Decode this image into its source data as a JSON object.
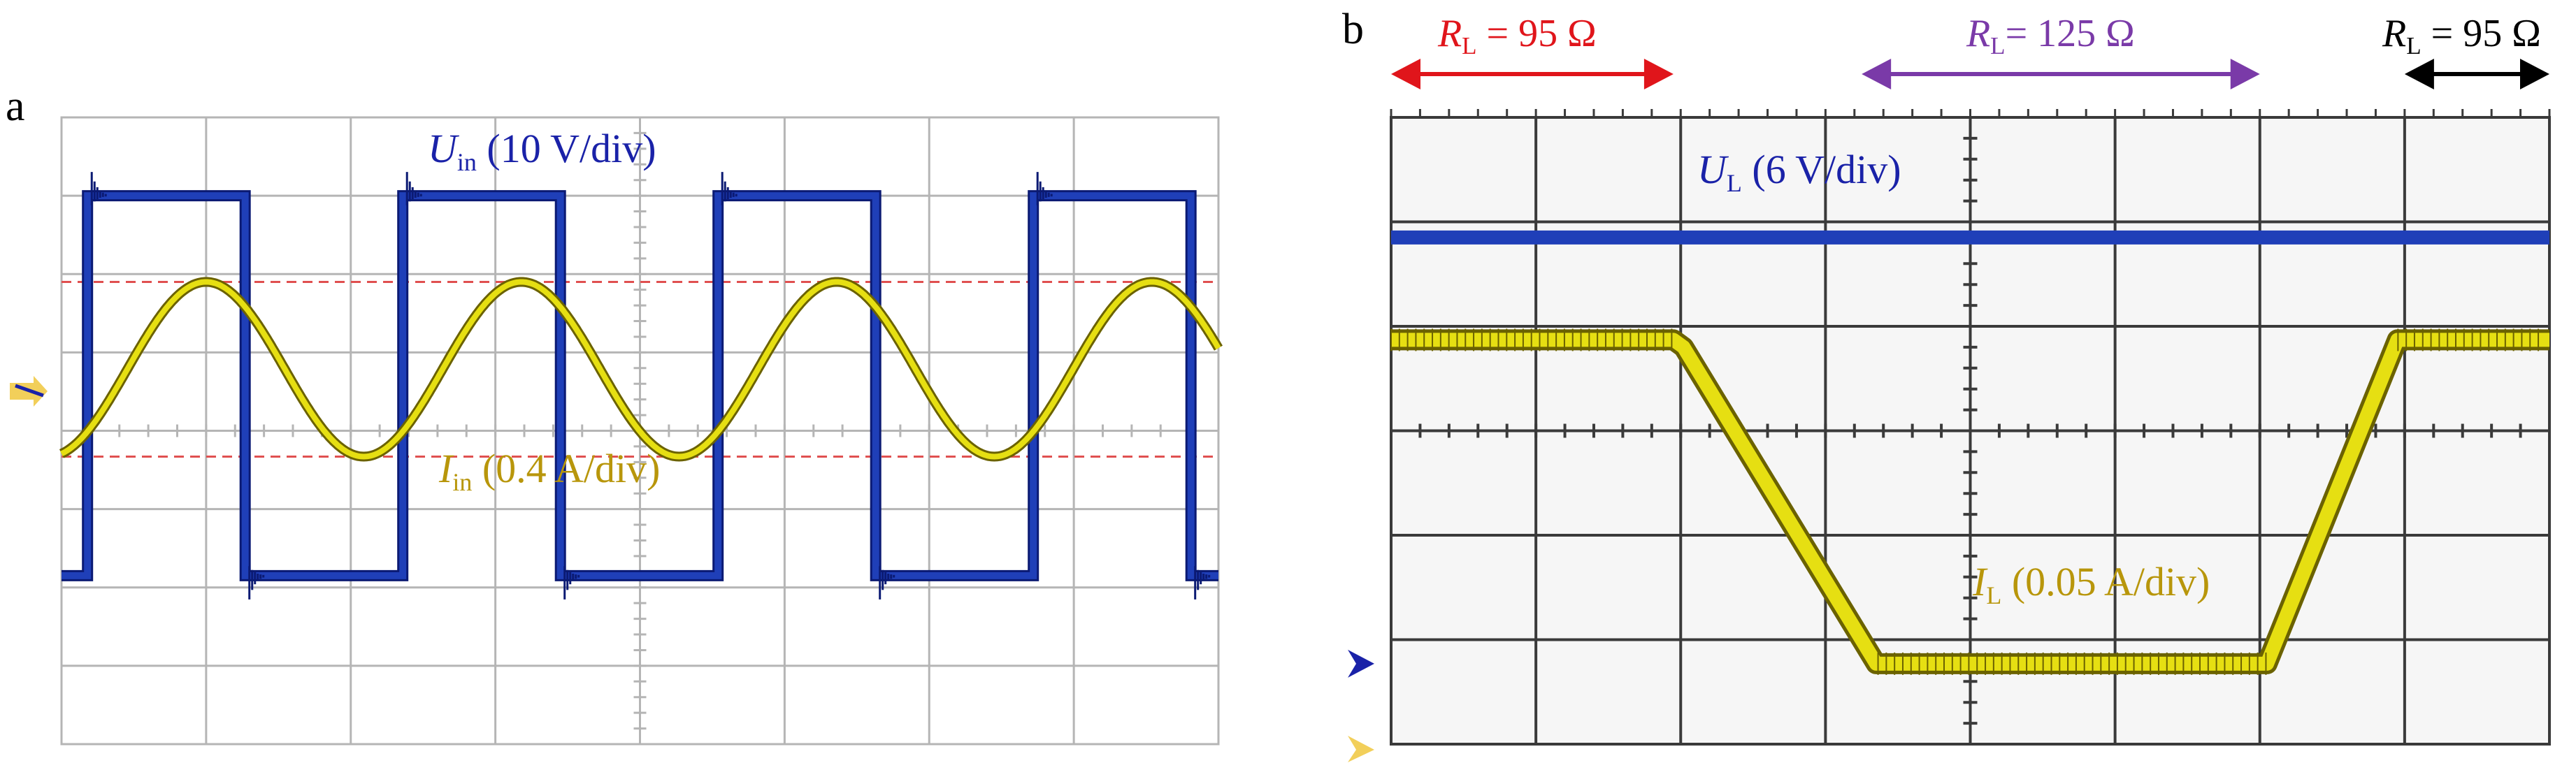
{
  "colors": {
    "voltage": "#1f3fb8",
    "voltage_edge": "#0b1a73",
    "current": "#e6df12",
    "current_edge": "#6b6200",
    "grid": "#b5b5b5",
    "grid_bold": "#3a3a3a",
    "ref_dash": "#e05050",
    "panel_b_bg": "#f6f6f6",
    "annotation_red": "#e0151b",
    "annotation_purple": "#7a3aa8",
    "annotation_black": "#000000",
    "label_voltage": "#1a22a8",
    "label_current": "#b8960b",
    "marker_blue": "#1a22a8",
    "marker_yellow": "#f2cf5a"
  },
  "chart_data": [
    {
      "panel_letter": "a",
      "type": "line",
      "grid": true,
      "divisions": {
        "x": 8,
        "y": 8
      },
      "channels": [
        {
          "label_main": "U",
          "label_sub": "in",
          "label_scale": " (10 V/div)",
          "unit_per_div": "10 V/div",
          "waveform": "square",
          "period_div": 2.18,
          "start_div": 0.18,
          "duty": 0.5,
          "high_div": 7.0,
          "low_div": 2.15
        },
        {
          "label_main": "I",
          "label_sub": "in",
          "label_scale": " (0.4 A/div)",
          "unit_per_div": "0.4 A/div",
          "waveform": "sine",
          "period_div": 2.18,
          "max_div": 5.9,
          "min_div": 3.67,
          "peak_at_div": 1.0
        }
      ],
      "reference_lines_div": [
        5.9,
        3.67
      ],
      "ground_marker": "yellow-blue"
    },
    {
      "panel_letter": "b",
      "type": "line",
      "grid": true,
      "divisions": {
        "x": 8,
        "y": 6
      },
      "channels": [
        {
          "label_main": "U",
          "label_sub": "L",
          "label_scale": " (6 V/div)",
          "unit_per_div": "6 V/div",
          "waveform": "dc",
          "level_div": 4.85
        },
        {
          "label_main": "I",
          "label_sub": "L",
          "label_scale": " (0.05 A/div)",
          "unit_per_div": "0.05 A/div",
          "waveform": "step",
          "points_div": [
            [
              0,
              3.87
            ],
            [
              1.95,
              3.87
            ],
            [
              2.02,
              3.8
            ],
            [
              3.35,
              0.77
            ],
            [
              6.05,
              0.77
            ],
            [
              6.95,
              3.87
            ],
            [
              8,
              3.87
            ]
          ]
        }
      ],
      "load_segments": [
        {
          "label_main": "R",
          "label_sub": "L",
          "label_value": " = 95 Ω",
          "from_div": 0.0,
          "to_div": 1.95,
          "color_key": "annotation_red"
        },
        {
          "label_main": "R",
          "label_sub": "L",
          "label_value": "= 125 Ω",
          "from_div": 3.25,
          "to_div": 6.0,
          "color_key": "annotation_purple"
        },
        {
          "label_main": "R",
          "label_sub": "L",
          "label_value": " = 95 Ω",
          "from_div": 7.0,
          "to_div": 8.0,
          "color_key": "annotation_black"
        }
      ]
    }
  ]
}
